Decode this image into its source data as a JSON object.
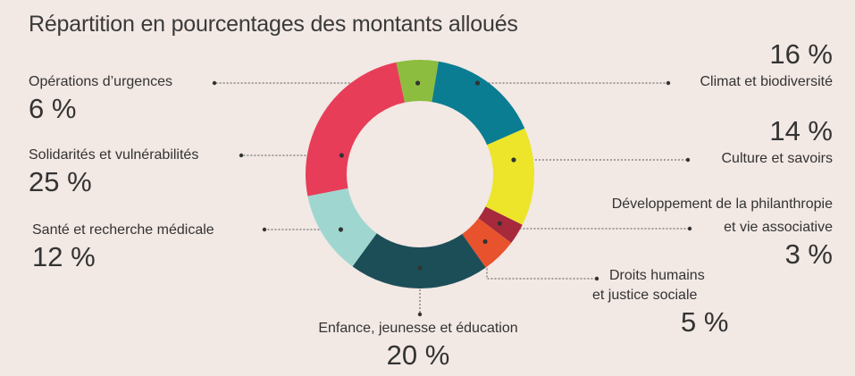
{
  "chart_data": {
    "type": "pie",
    "title": "Répartition en pourcentages des montants alloués",
    "categories": [
      "Opérations d’urgences",
      "Climat et biodiversité",
      "Culture et savoirs",
      "Développement de la philanthropie et vie associative",
      "Droits humains et justice sociale",
      "Enfance, jeunesse et éducation",
      "Santé et recherche médicale",
      "Solidarités et vulnérabilités"
    ],
    "values": [
      6,
      16,
      14,
      3,
      5,
      20,
      12,
      25
    ],
    "value_labels": [
      "6 %",
      "16 %",
      "14 %",
      "3 %",
      "5 %",
      "20 %",
      "12 %",
      "25 %"
    ],
    "colors": [
      "#8cbd3f",
      "#0a7d92",
      "#ece52a",
      "#a62a3c",
      "#e8532d",
      "#1c4e58",
      "#9fd7d0",
      "#e83d58"
    ],
    "unit": "%"
  },
  "labels": {
    "urgences": "Opérations d’urgences",
    "climat": "Climat et biodiversité",
    "culture": "Culture et savoirs",
    "philanthropie_line1": "Développement de la philanthropie",
    "philanthropie_line2": "et vie associative",
    "droits_line1": "Droits humains",
    "droits_line2": "et justice sociale",
    "enfance": "Enfance, jeunesse et éducation",
    "sante": "Santé et recherche médicale",
    "solidarites": "Solidarités et vulnérabilités"
  }
}
